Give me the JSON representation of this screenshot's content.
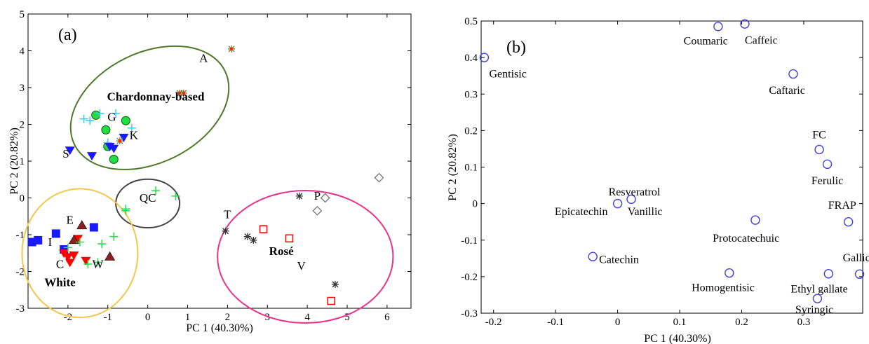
{
  "chart_data": [
    {
      "type": "scatter",
      "panel_label": "(a)",
      "xlabel": "PC 1 (40.30%)",
      "ylabel": "PC 2 (20.82%)",
      "xlim": [
        -3,
        6.6
      ],
      "ylim": [
        -3,
        5
      ],
      "xticks": [
        -2,
        -1,
        0,
        1,
        2,
        3,
        4,
        5,
        6
      ],
      "yticks": [
        -3,
        -2,
        -1,
        0,
        1,
        2,
        3,
        4,
        5
      ],
      "grid": false,
      "colors": {
        "blue": "#1a1aff",
        "cyan": "#33ccff",
        "red": "#ff0000",
        "darkred": "#8b2020",
        "green": "#22dd44",
        "olive": "#6b7a2a",
        "grey": "#333333",
        "ellipse_green": "#4d7a2a",
        "ellipse_grey": "#444444",
        "ellipse_pink": "#e8338a",
        "ellipse_yellow": "#f0c850"
      },
      "series": [
        {
          "marker": "square-filled",
          "color": "#1a1aff",
          "points": [
            [
              -2.9,
              -1.2
            ],
            [
              -2.75,
              -1.15
            ],
            [
              -2.3,
              -0.97
            ],
            [
              -2.1,
              -1.4
            ],
            [
              -1.35,
              -0.8
            ]
          ]
        },
        {
          "marker": "tri-down-filled",
          "color": "#ff0000",
          "points": [
            [
              -2.1,
              -1.5
            ],
            [
              -2.0,
              -1.6
            ],
            [
              -1.95,
              -1.75
            ],
            [
              -1.85,
              -1.55
            ],
            [
              -1.55,
              -1.7
            ],
            [
              -1.75,
              -1.1
            ]
          ]
        },
        {
          "marker": "tri-up-filled",
          "color": "#8b2020",
          "points": [
            [
              -1.65,
              -0.75
            ],
            [
              -1.85,
              -1.15
            ],
            [
              -0.95,
              -1.6
            ]
          ]
        },
        {
          "marker": "plus",
          "color": "#22dd44",
          "points": [
            [
              -2.0,
              -1.35
            ],
            [
              -1.5,
              -1.8
            ],
            [
              -1.25,
              -1.75
            ],
            [
              -1.15,
              -1.25
            ],
            [
              -0.85,
              -1.05
            ],
            [
              0.2,
              0.2
            ],
            [
              -0.55,
              -0.3
            ],
            [
              -0.55,
              -0.35
            ],
            [
              0.7,
              0.05
            ],
            [
              -1.7,
              -1.2
            ]
          ]
        },
        {
          "marker": "circle-filled",
          "color": "#22dd44",
          "points": [
            [
              -1.3,
              2.25
            ],
            [
              -1.05,
              1.85
            ],
            [
              -0.55,
              2.1
            ],
            [
              -1.0,
              1.4
            ],
            [
              -0.85,
              1.05
            ]
          ]
        },
        {
          "marker": "plus",
          "color": "#33ccff",
          "points": [
            [
              -1.45,
              2.1
            ],
            [
              -1.2,
              2.3
            ],
            [
              -1.0,
              1.5
            ],
            [
              -0.4,
              1.9
            ],
            [
              -1.6,
              2.15
            ],
            [
              -0.8,
              2.3
            ]
          ]
        },
        {
          "marker": "tri-down-filled",
          "color": "#1a1aff",
          "points": [
            [
              -1.95,
              1.3
            ],
            [
              -1.4,
              1.15
            ],
            [
              -0.6,
              1.65
            ],
            [
              -0.95,
              1.4
            ],
            [
              -0.85,
              1.35
            ]
          ]
        },
        {
          "marker": "star",
          "color": "#6b7a2a",
          "points": [
            [
              0.8,
              2.85
            ],
            [
              0.9,
              2.85
            ],
            [
              -0.7,
              1.55
            ],
            [
              2.1,
              4.05
            ]
          ]
        },
        {
          "marker": "square-open",
          "color": "#ff0000",
          "points": [
            [
              2.9,
              -0.85
            ],
            [
              3.55,
              -1.1
            ],
            [
              4.6,
              -2.8
            ]
          ]
        },
        {
          "marker": "star-grey",
          "color": "#333333",
          "points": [
            [
              1.95,
              -0.9
            ],
            [
              2.5,
              -1.05
            ],
            [
              2.65,
              -1.15
            ],
            [
              3.8,
              0.05
            ],
            [
              4.7,
              -2.35
            ]
          ]
        },
        {
          "marker": "diamond-open",
          "color": "#777777",
          "points": [
            [
              4.25,
              -0.35
            ],
            [
              4.45,
              0.0
            ],
            [
              5.8,
              0.55
            ]
          ]
        }
      ],
      "point_labels": [
        {
          "text": "A",
          "x": 1.4,
          "y": 3.7
        },
        {
          "text": "G",
          "x": -0.9,
          "y": 2.1
        },
        {
          "text": "K",
          "x": -0.35,
          "y": 1.6
        },
        {
          "text": "S",
          "x": -2.05,
          "y": 1.1
        },
        {
          "text": "QC",
          "x": 0.0,
          "y": -0.1
        },
        {
          "text": "T",
          "x": 2.0,
          "y": -0.55
        },
        {
          "text": "P",
          "x": 4.25,
          "y": -0.05
        },
        {
          "text": "E",
          "x": -1.95,
          "y": -0.7
        },
        {
          "text": "I",
          "x": -2.45,
          "y": -1.3
        },
        {
          "text": "C",
          "x": -2.2,
          "y": -1.9
        },
        {
          "text": "W",
          "x": -1.25,
          "y": -1.9
        },
        {
          "text": "V",
          "x": 3.85,
          "y": -1.95
        }
      ],
      "group_labels": [
        {
          "text": "Chardonnay-based",
          "x": 0.2,
          "y": 2.65
        },
        {
          "text": "White",
          "x": -2.2,
          "y": -2.4
        },
        {
          "text": "Rosé",
          "x": 3.35,
          "y": -1.55
        }
      ]
    },
    {
      "type": "scatter",
      "panel_label": "(b)",
      "xlabel": "PC 1 (40.30%)",
      "ylabel": "PC 2 (20.82%)",
      "xlim": [
        -0.22,
        0.395
      ],
      "ylim": [
        -0.3,
        0.5
      ],
      "xticks": [
        -0.2,
        -0.1,
        0,
        0.1,
        0.2,
        0.3
      ],
      "yticks": [
        -0.3,
        -0.2,
        -0.1,
        0,
        0.1,
        0.2,
        0.3,
        0.4,
        0.5
      ],
      "grid": false,
      "marker": "circle-open",
      "color": "#4040e0",
      "points": [
        {
          "name": "Gentisic",
          "x": -0.215,
          "y": 0.4,
          "anchor": "start",
          "dx": 0.008,
          "dy": -0.045
        },
        {
          "name": "Coumaric",
          "x": 0.162,
          "y": 0.485,
          "anchor": "middle",
          "dx": -0.02,
          "dy": -0.04
        },
        {
          "name": "Caffeic",
          "x": 0.205,
          "y": 0.492,
          "anchor": "start",
          "dx": 0.0,
          "dy": -0.045
        },
        {
          "name": "Caftaric",
          "x": 0.283,
          "y": 0.355,
          "anchor": "middle",
          "dx": -0.01,
          "dy": -0.045
        },
        {
          "name": "FC",
          "x": 0.325,
          "y": 0.148,
          "anchor": "middle",
          "dx": 0.0,
          "dy": 0.04
        },
        {
          "name": "Ferulic",
          "x": 0.338,
          "y": 0.108,
          "anchor": "middle",
          "dx": 0.0,
          "dy": -0.045
        },
        {
          "name": "Resveratrol",
          "x": 0.022,
          "y": 0.012,
          "anchor": "middle",
          "dx": 0.005,
          "dy": 0.02
        },
        {
          "name": "Vanillic",
          "x": 0.0,
          "y": 0.0,
          "anchor": "start",
          "dx": 0.016,
          "dy": -0.022
        },
        {
          "name": "Epicatechin",
          "x": 0.0,
          "y": 0.0,
          "anchor": "end",
          "dx": -0.016,
          "dy": -0.022
        },
        {
          "name": "FRAP",
          "x": 0.372,
          "y": -0.05,
          "anchor": "middle",
          "dx": -0.01,
          "dy": 0.045
        },
        {
          "name": "Protocatechuic",
          "x": 0.222,
          "y": -0.045,
          "anchor": "middle",
          "dx": -0.015,
          "dy": -0.05
        },
        {
          "name": "Catechin",
          "x": -0.04,
          "y": -0.145,
          "anchor": "start",
          "dx": 0.01,
          "dy": -0.008
        },
        {
          "name": "Gallic",
          "x": 0.39,
          "y": -0.193,
          "anchor": "middle",
          "dx": -0.005,
          "dy": 0.045
        },
        {
          "name": "Homogentisic",
          "x": 0.18,
          "y": -0.19,
          "anchor": "middle",
          "dx": -0.01,
          "dy": -0.04
        },
        {
          "name": "Ethyl gallate",
          "x": 0.34,
          "y": -0.192,
          "anchor": "middle",
          "dx": -0.015,
          "dy": -0.042
        },
        {
          "name": "Syringic",
          "x": 0.322,
          "y": -0.26,
          "anchor": "middle",
          "dx": -0.005,
          "dy": -0.03
        }
      ]
    }
  ]
}
